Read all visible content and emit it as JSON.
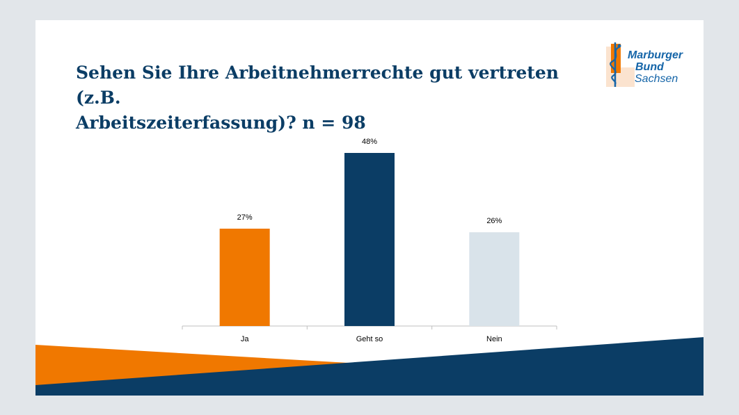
{
  "title_line1": "Sehen Sie Ihre Arbeitnehmerrechte gut vertreten (z.B.",
  "title_line2": "Arbeitszeiterfassung)?  n = 98",
  "logo": {
    "line1": "Marburger",
    "line2": "Bund",
    "line3": "Sachsen"
  },
  "colors": {
    "orange": "#f07800",
    "navy": "#0b3d65",
    "lightblue": "#d9e3ea",
    "axis": "#bfbfbf",
    "text": "#000000"
  },
  "chart_data": {
    "type": "bar",
    "title": "Sehen Sie Ihre Arbeitnehmerrechte gut vertreten (z.B. Arbeitszeiterfassung)?  n = 98",
    "categories": [
      "Ja",
      "Geht so",
      "Nein"
    ],
    "values": [
      27,
      48,
      26
    ],
    "value_labels": [
      "27%",
      "48%",
      "26%"
    ],
    "bar_colors": [
      "#f07800",
      "#0b3d65",
      "#d9e3ea"
    ],
    "unit": "%",
    "xlabel": "",
    "ylabel": "",
    "ylim": [
      0,
      50
    ],
    "grid": false,
    "legend": "none"
  }
}
